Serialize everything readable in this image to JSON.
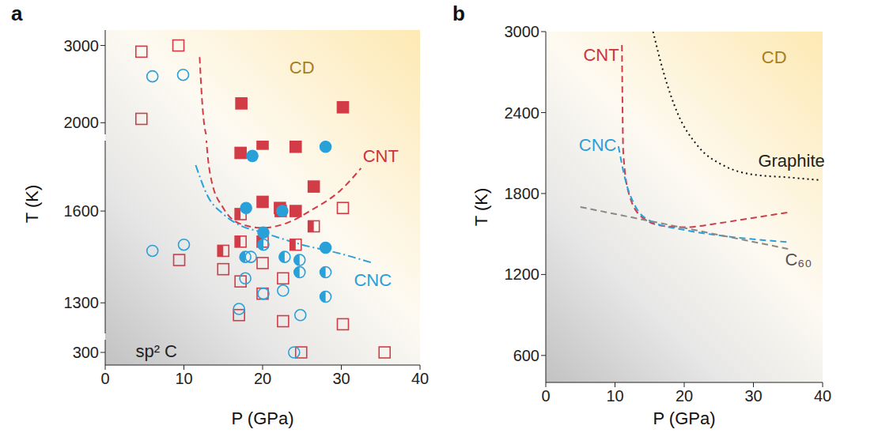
{
  "chart_data": [
    {
      "panel": "a",
      "type": "scatter",
      "x_label": "P (GPa)",
      "y_label": "T (K)",
      "xlim": [
        0,
        40
      ],
      "xticks": [
        0,
        10,
        20,
        30,
        40
      ],
      "y_segments": [
        {
          "ylim": [
            1850,
            3200
          ],
          "yticks": [
            2000,
            3000
          ]
        },
        {
          "ylim": [
            1200,
            1830
          ],
          "yticks": [
            1300,
            1600
          ]
        },
        {
          "ylim": [
            200,
            400
          ],
          "yticks": [
            300
          ]
        }
      ],
      "series": [
        {
          "type": "scatter",
          "marker": "square_open",
          "color": "#d23c46",
          "x": [
            4.6,
            9.3,
            4.6,
            9.4,
            15,
            17.2,
            17,
            20,
            20,
            22.6,
            22.6,
            30.2,
            30.2,
            24.9,
            35.5
          ],
          "y": [
            2920,
            3000,
            2050,
            1440,
            1410,
            1370,
            1260,
            1430,
            1330,
            1380,
            1240,
            1610,
            1230,
            300,
            300
          ]
        },
        {
          "type": "scatter",
          "marker": "square_half",
          "color": "#d23c46",
          "x": [
            15,
            17.2,
            20,
            17.2,
            22.3,
            26.5,
            24.2
          ],
          "y": [
            1470,
            1500,
            1500,
            1590,
            1600,
            1550,
            1490
          ]
        },
        {
          "type": "scatter",
          "marker": "square_filled",
          "color": "#d23c46",
          "x": [
            17.3,
            30.2,
            17.2,
            20,
            24.2,
            26.5,
            20,
            22.2,
            24.2
          ],
          "y": [
            2250,
            2200,
            1790,
            1820,
            1810,
            1680,
            1630,
            1610,
            1600
          ]
        },
        {
          "type": "scatter",
          "marker": "circle_open",
          "color": "#2aa0d8",
          "x": [
            6,
            9.9,
            6,
            10,
            17.8,
            18.5,
            20.1,
            22.6,
            24.8,
            17,
            24
          ],
          "y": [
            2600,
            2620,
            1470,
            1490,
            1380,
            1450,
            1330,
            1340,
            1260,
            1280,
            300
          ]
        },
        {
          "type": "scatter",
          "marker": "circle_half",
          "color": "#2aa0d8",
          "x": [
            17.8,
            22.8,
            24.7,
            24.7,
            28,
            28,
            20.1
          ],
          "y": [
            1450,
            1450,
            1440,
            1400,
            1400,
            1320,
            1490
          ]
        },
        {
          "type": "scatter",
          "marker": "circle_filled",
          "color": "#2aa0d8",
          "x": [
            18.7,
            28,
            17.9,
            22.5,
            20.1,
            28
          ],
          "y": [
            1780,
            1810,
            1610,
            1600,
            1530,
            1480
          ]
        },
        {
          "type": "line",
          "line_style": "dashed",
          "color": "#d23c46",
          "x": [
            12,
            12.3,
            12.7,
            13.5,
            15,
            17,
            20,
            23,
            26,
            30,
            32.5
          ],
          "y": [
            2850,
            2300,
            1900,
            1700,
            1610,
            1560,
            1545,
            1560,
            1600,
            1670,
            1740
          ]
        },
        {
          "type": "line",
          "line_style": "dashdot",
          "color": "#2aa0d8",
          "x": [
            11.5,
            13,
            15,
            17,
            20,
            25,
            30,
            34
          ],
          "y": [
            1750,
            1650,
            1590,
            1555,
            1530,
            1490,
            1460,
            1430
          ]
        }
      ],
      "annotations": [
        {
          "text": "CD",
          "x": 25,
          "y": 2700,
          "color": "#a57f1f"
        },
        {
          "text": "CNT",
          "x": 35,
          "y": 1775,
          "color": "#cc3340"
        },
        {
          "text": "CNC",
          "x": 34,
          "y": 1370,
          "color": "#2aa0d8"
        },
        {
          "text": "sp² C",
          "x": 6.5,
          "y": 300,
          "color": "#222222"
        }
      ]
    },
    {
      "panel": "b",
      "type": "line",
      "x_label": "P (GPa)",
      "y_label": "T (K)",
      "xlim": [
        0,
        40
      ],
      "xticks": [
        0,
        10,
        20,
        30,
        40
      ],
      "ylim": [
        400,
        3000
      ],
      "yticks": [
        600,
        1200,
        1800,
        2400,
        3000
      ],
      "series": [
        {
          "type": "line",
          "line_style": "dashed",
          "color": "#d23c46",
          "x": [
            11,
            11.2,
            12,
            14,
            17,
            20,
            25,
            30,
            35
          ],
          "y": [
            2900,
            2100,
            1800,
            1620,
            1560,
            1550,
            1580,
            1620,
            1660
          ]
        },
        {
          "type": "line",
          "line_style": "dashed",
          "color": "#2aa0d8",
          "x": [
            10.5,
            11.5,
            13,
            15,
            20,
            25,
            35
          ],
          "y": [
            2150,
            1900,
            1700,
            1600,
            1530,
            1490,
            1440
          ]
        },
        {
          "type": "line",
          "line_style": "dashed",
          "color": "#888888",
          "x": [
            5,
            35
          ],
          "y": [
            1700,
            1390
          ]
        },
        {
          "type": "line",
          "line_style": "dotted",
          "color": "#111111",
          "x": [
            15.5,
            17,
            19,
            22,
            26,
            30,
            35,
            39.5
          ],
          "y": [
            3000,
            2700,
            2400,
            2150,
            2000,
            1940,
            1920,
            1900
          ]
        }
      ],
      "annotations": [
        {
          "text": "CNT",
          "x": 8,
          "y": 2820,
          "color": "#cc3340"
        },
        {
          "text": "CNC",
          "x": 7.5,
          "y": 2150,
          "color": "#2aa0d8"
        },
        {
          "text": "CD",
          "x": 33,
          "y": 2800,
          "color": "#a57f1f"
        },
        {
          "text": "Graphite",
          "x": 35.5,
          "y": 2030,
          "color": "#222222"
        },
        {
          "text": "C₆₀",
          "x": 36.5,
          "y": 1300,
          "color": "#555555"
        }
      ]
    }
  ]
}
